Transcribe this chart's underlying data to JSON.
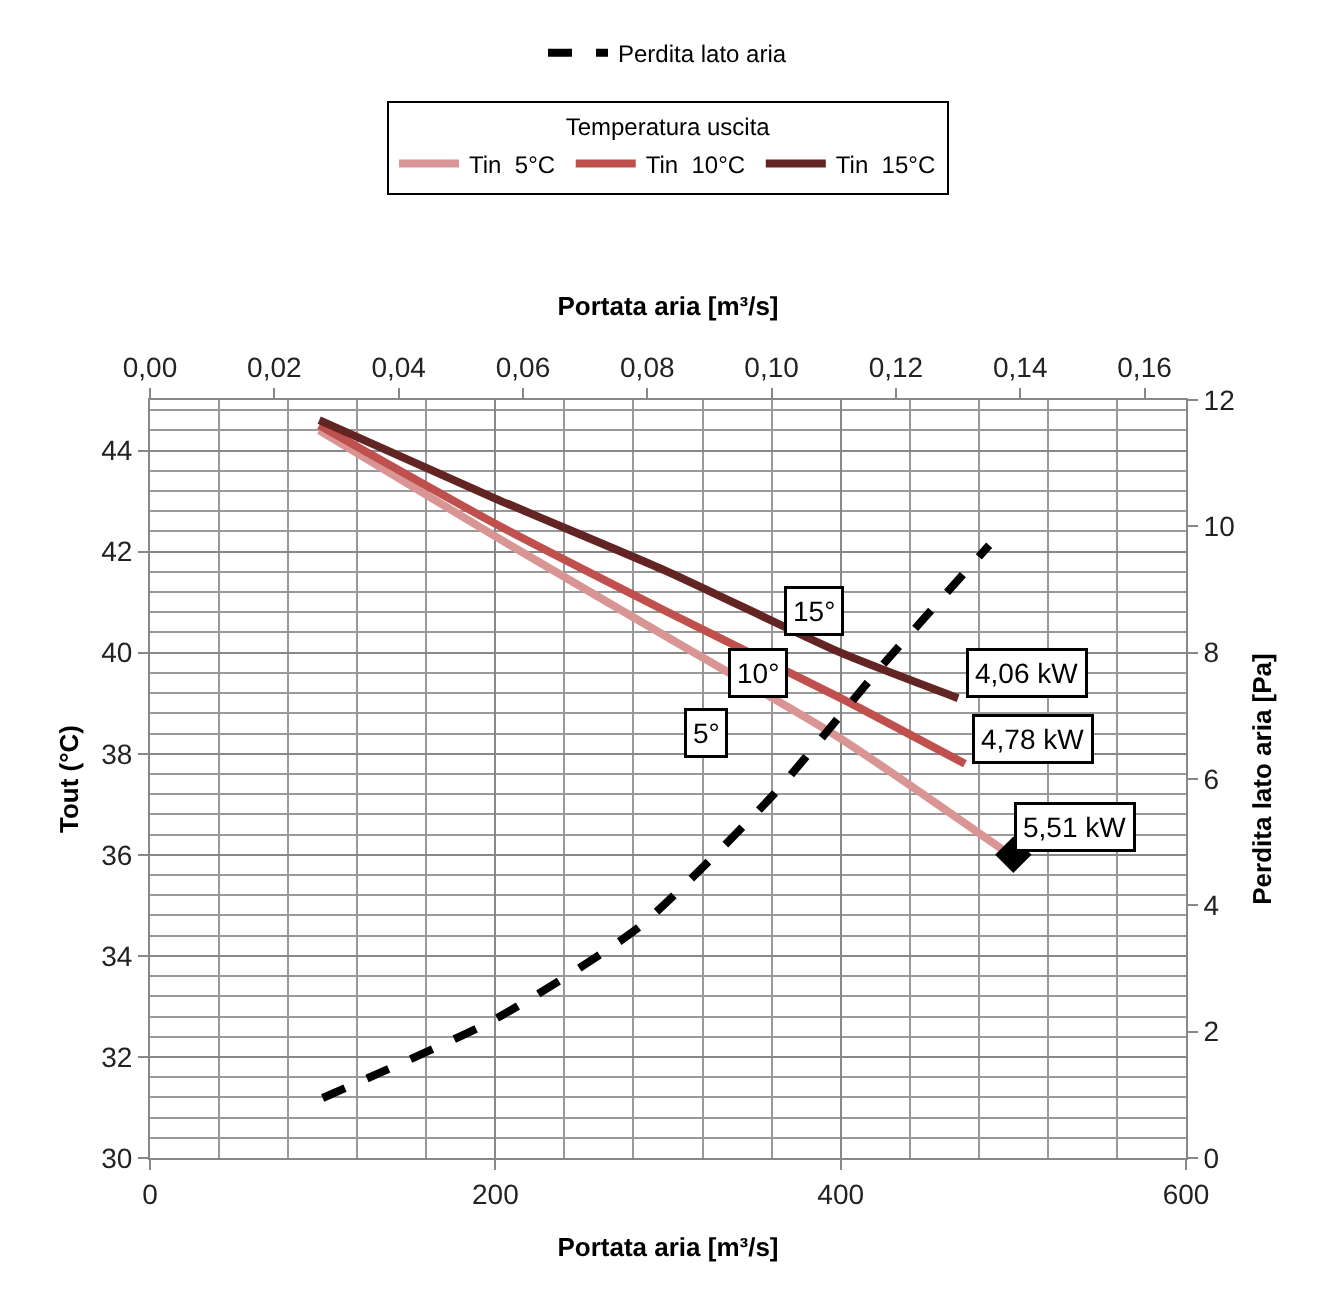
{
  "chart_data": {
    "type": "line",
    "xlabel": "Portata aria [m³/s]",
    "ylabel": "Tout (°C)",
    "y2label": "Perdita lato aria [Pa]",
    "x2label": "Portata aria [m³/s]",
    "legend_title": "Temperatura uscita",
    "xlim": [
      0,
      600
    ],
    "xticks": [
      0,
      200,
      400,
      600
    ],
    "ylim": [
      30,
      45
    ],
    "yticks": [
      30,
      32,
      34,
      36,
      38,
      40,
      42,
      44
    ],
    "y2lim": [
      0,
      12
    ],
    "y2ticks": [
      0,
      2,
      4,
      6,
      8,
      10,
      12
    ],
    "x2lim": [
      0,
      0.16667
    ],
    "x2ticks": [
      {
        "value": 0,
        "label": "0,00"
      },
      {
        "value": 0.02,
        "label": "0,02"
      },
      {
        "value": 0.04,
        "label": "0,04"
      },
      {
        "value": 0.06,
        "label": "0,06"
      },
      {
        "value": 0.08,
        "label": "0,08"
      },
      {
        "value": 0.1,
        "label": "0,10"
      },
      {
        "value": 0.12,
        "label": "0,12"
      },
      {
        "value": 0.14,
        "label": "0,14"
      },
      {
        "value": 0.16,
        "label": "0,16"
      }
    ],
    "grid": true,
    "legend": "top",
    "line_style": "solid",
    "marker": "none",
    "series": [
      {
        "name": "Perdita lato aria",
        "color": "#000000",
        "axis": "y2",
        "line_style": "dashed",
        "x": [
          100,
          200,
          283,
          361,
          421,
          486
        ],
        "values": [
          0.95,
          2.2,
          3.65,
          5.75,
          7.7,
          9.7
        ]
      },
      {
        "name": "Tin  5°C",
        "color": "#d99594",
        "x": [
          98,
          200,
          300,
          400,
          496
        ],
        "values": [
          44.4,
          42.3,
          40.3,
          38.3,
          36.05
        ]
      },
      {
        "name": "Tin  10°C",
        "color": "#c0504d",
        "x": [
          98,
          200,
          300,
          400,
          472
        ],
        "values": [
          44.5,
          42.55,
          40.8,
          39.1,
          37.8
        ]
      },
      {
        "name": "Tin  15°C",
        "color": "#632523",
        "x": [
          98,
          200,
          300,
          400,
          468
        ],
        "values": [
          44.6,
          43.05,
          41.6,
          40.0,
          39.1
        ]
      },
      {
        "type": "scatter",
        "color": "#000000",
        "marker": "diamond",
        "x": [
          500
        ],
        "values": [
          36.0
        ]
      }
    ],
    "annotations": [
      {
        "text": "15°",
        "x": 385,
        "y": 40.83
      },
      {
        "text": "10°",
        "x": 352,
        "y": 39.6
      },
      {
        "text": "5°",
        "x": 322,
        "y": 38.4
      },
      {
        "text": "4,06 kW",
        "x": 468,
        "y": 39.1
      },
      {
        "text": "4,78 kW",
        "x": 472,
        "y": 37.8
      },
      {
        "text": "5,51 kW",
        "x": 496,
        "y": 36.05
      }
    ]
  }
}
